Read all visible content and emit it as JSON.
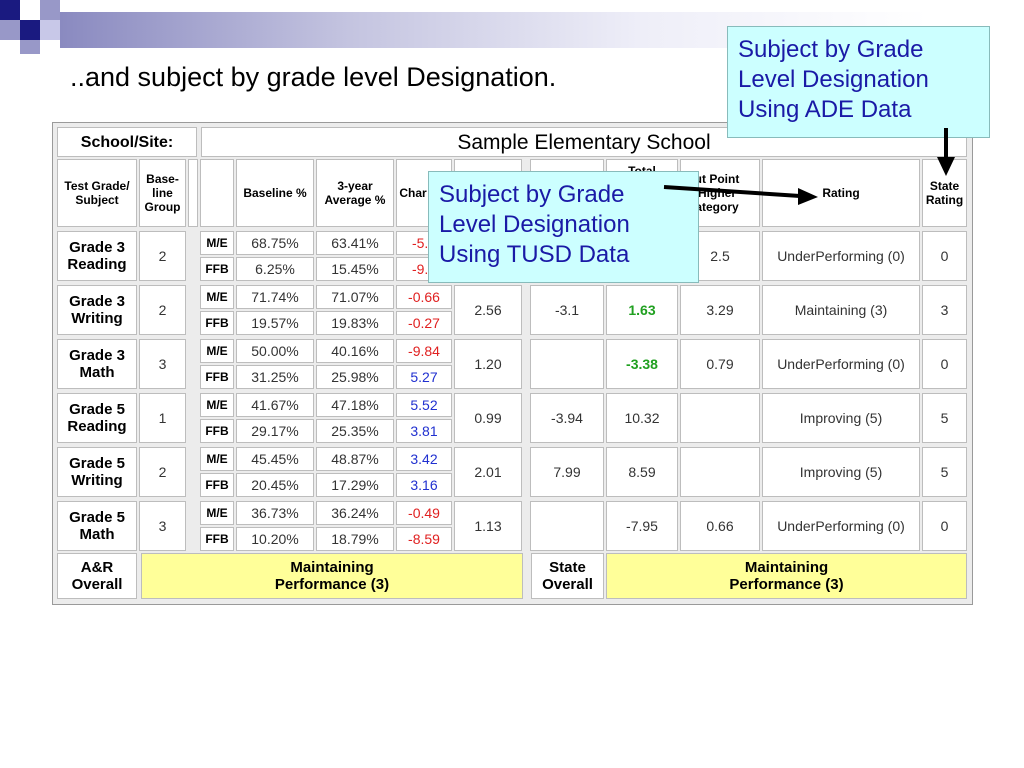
{
  "slide": {
    "title": "..and subject by grade level Designation."
  },
  "callouts": {
    "ade": "Subject by Grade Level Designation Using ADE Data",
    "tusd": "Subject by Grade Level Designation Using TUSD Data"
  },
  "table": {
    "site_label": "School/Site:",
    "school_name": "Sample Elementary School",
    "headers": {
      "grade_subject": "Test Grade/ Subject",
      "baseline_group": "Base- line Group",
      "baseline_pct": "Baseline %",
      "avg3": "3-year Average %",
      "change": "Char Poi",
      "total": "Total",
      "cut_point": "ut Point Higher ategory",
      "rating": "Rating",
      "state_rating": "State Rating"
    },
    "rows": [
      {
        "grade": "Grade 3 Reading",
        "group": "2",
        "me": {
          "label": "M/E",
          "base": "68.75%",
          "avg": "63.41%",
          "chg": "-5.3"
        },
        "ffb": {
          "label": "FFB",
          "base": "6.25%",
          "avg": "15.45%",
          "chg": "-9.2"
        },
        "c1": "",
        "c2": "",
        "total": "",
        "cut": "2.5",
        "rating": "UnderPerforming (0)",
        "state": "0"
      },
      {
        "grade": "Grade 3 Writing",
        "group": "2",
        "me": {
          "label": "M/E",
          "base": "71.74%",
          "avg": "71.07%",
          "chg": "-0.66"
        },
        "ffb": {
          "label": "FFB",
          "base": "19.57%",
          "avg": "19.83%",
          "chg": "-0.27"
        },
        "c1": "2.56",
        "c2": "-3.1",
        "total": "1.63",
        "cut": "3.29",
        "rating": "Maintaining (3)",
        "state": "3"
      },
      {
        "grade": "Grade 3 Math",
        "group": "3",
        "me": {
          "label": "M/E",
          "base": "50.00%",
          "avg": "40.16%",
          "chg": "-9.84"
        },
        "ffb": {
          "label": "FFB",
          "base": "31.25%",
          "avg": "25.98%",
          "chg": "5.27"
        },
        "c1": "1.20",
        "c2": "",
        "total": "-3.38",
        "cut": "0.79",
        "rating": "UnderPerforming (0)",
        "state": "0"
      },
      {
        "grade": "Grade 5 Reading",
        "group": "1",
        "me": {
          "label": "M/E",
          "base": "41.67%",
          "avg": "47.18%",
          "chg": "5.52"
        },
        "ffb": {
          "label": "FFB",
          "base": "29.17%",
          "avg": "25.35%",
          "chg": "3.81"
        },
        "c1": "0.99",
        "c2": "-3.94",
        "total": "10.32",
        "cut": "",
        "rating": "Improving (5)",
        "state": "5"
      },
      {
        "grade": "Grade 5 Writing",
        "group": "2",
        "me": {
          "label": "M/E",
          "base": "45.45%",
          "avg": "48.87%",
          "chg": "3.42"
        },
        "ffb": {
          "label": "FFB",
          "base": "20.45%",
          "avg": "17.29%",
          "chg": "3.16"
        },
        "c1": "2.01",
        "c2": "7.99",
        "total": "8.59",
        "cut": "",
        "rating": "Improving (5)",
        "state": "5"
      },
      {
        "grade": "Grade 5 Math",
        "group": "3",
        "me": {
          "label": "M/E",
          "base": "36.73%",
          "avg": "36.24%",
          "chg": "-0.49"
        },
        "ffb": {
          "label": "FFB",
          "base": "10.20%",
          "avg": "18.79%",
          "chg": "-8.59"
        },
        "c1": "1.13",
        "c2": "",
        "total": "-7.95",
        "cut": "0.66",
        "rating": "UnderPerforming (0)",
        "state": "0"
      }
    ],
    "footer": {
      "ar_label": "A&R Overall",
      "ar_value": "Maintaining Performance (3)",
      "state_label": "State Overall",
      "state_value": "Maintaining Performance (3)"
    }
  }
}
